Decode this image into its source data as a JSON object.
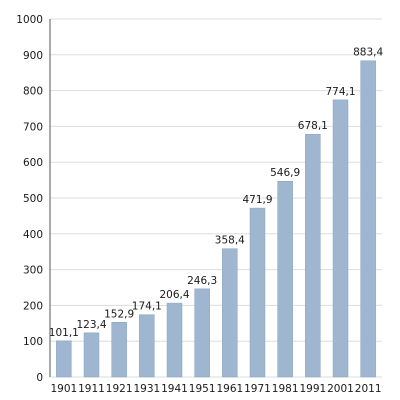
{
  "chart_data": {
    "type": "bar",
    "categories": [
      "1901",
      "1911",
      "1921",
      "1931",
      "1941",
      "1951",
      "1961",
      "1971",
      "1981",
      "1991",
      "2001",
      "2011"
    ],
    "values": [
      101.1,
      123.4,
      152.9,
      174.1,
      206.4,
      246.3,
      358.4,
      471.9,
      546.9,
      678.1,
      774.1,
      883.4
    ],
    "data_labels": [
      "101,1",
      "123,4",
      "152,9",
      "174,1",
      "206,4",
      "246,3",
      "358,4",
      "471,9",
      "546,9",
      "678,1",
      "774,1",
      "883,4"
    ],
    "y_ticks": [
      0,
      100,
      200,
      300,
      400,
      500,
      600,
      700,
      800,
      900,
      1000
    ],
    "ylim": [
      0,
      1000
    ],
    "grid": true,
    "colors": {
      "bar": "#9fb6d0",
      "bar_edge": "#8aa3c0",
      "grid": "#dddddd",
      "axis": "#555555"
    }
  }
}
